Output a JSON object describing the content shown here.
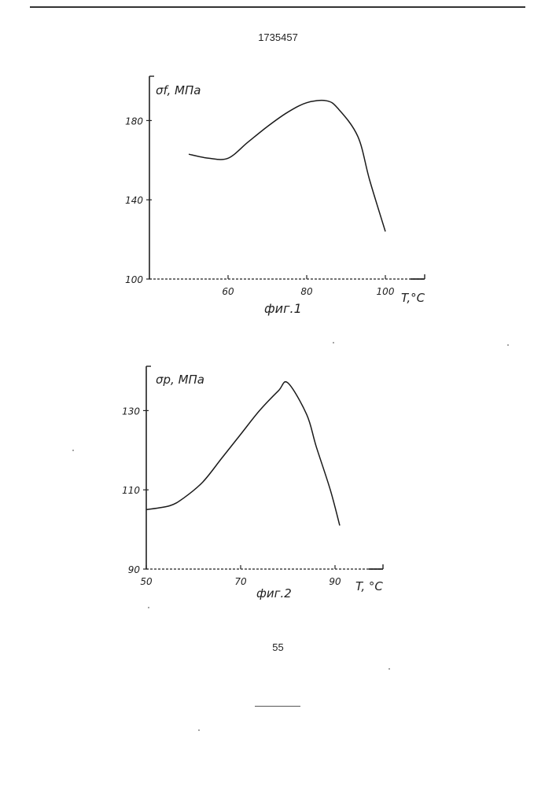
{
  "page": {
    "patent_number": "1735457",
    "page_number": "55"
  },
  "chart_data": [
    {
      "type": "line",
      "caption": "фиг.1",
      "ylabel": "σf, МПа",
      "xlabel": "T,°C",
      "x_ticks": [
        "60",
        "80",
        "100"
      ],
      "y_ticks": [
        "180",
        "140",
        "100"
      ],
      "xlim": [
        40,
        110
      ],
      "ylim": [
        100,
        200
      ],
      "grid": false,
      "x": [
        50,
        55,
        60,
        65,
        70,
        75,
        80,
        85,
        88,
        93,
        96,
        100
      ],
      "y": [
        163,
        161,
        161,
        169,
        177,
        184,
        189,
        190,
        186,
        172,
        150,
        124
      ]
    },
    {
      "type": "line",
      "caption": "фиг.2",
      "ylabel": "σp, МПа",
      "xlabel": "T, °C",
      "x_ticks": [
        "50",
        "70",
        "90"
      ],
      "y_ticks": [
        "130",
        "110",
        "90"
      ],
      "xlim": [
        50,
        100
      ],
      "ylim": [
        90,
        140
      ],
      "grid": false,
      "x": [
        50,
        55,
        58,
        62,
        66,
        70,
        74,
        78,
        80,
        84,
        86,
        89,
        91
      ],
      "y": [
        105,
        106,
        108,
        112,
        118,
        124,
        130,
        135,
        137,
        129,
        121,
        110,
        101
      ]
    }
  ]
}
